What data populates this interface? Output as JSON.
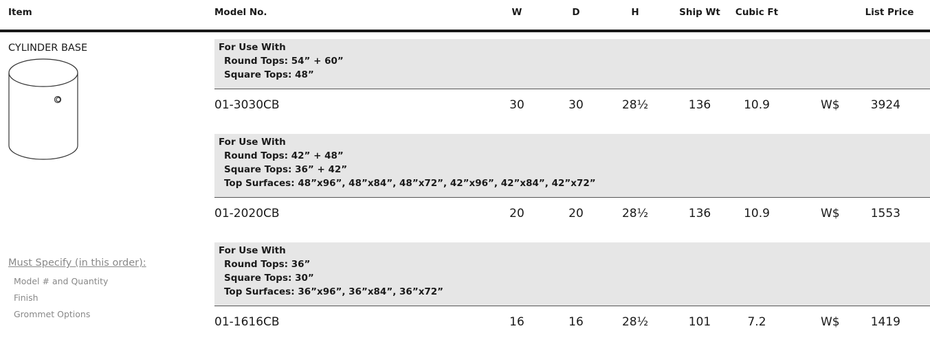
{
  "header": {
    "item": "Item",
    "model": "Model No.",
    "w": "W",
    "d": "D",
    "h": "H",
    "ship_wt": "Ship Wt",
    "cubic_ft": "Cubic Ft",
    "list_price": "List Price"
  },
  "item": {
    "name": "CYLINDER BASE",
    "must_specify": {
      "title": "Must Specify (in this order):",
      "items": [
        "Model # and Quantity",
        "Finish",
        "Grommet Options"
      ]
    }
  },
  "groups": [
    {
      "use_with": {
        "title": "For Use With",
        "lines": [
          "Round Tops: 54” + 60”",
          "Square Tops: 48”"
        ]
      },
      "row": {
        "model": "01-3030CB",
        "w": 30,
        "d": 30,
        "h": "28½",
        "ship_wt": 136,
        "cubic_ft": 10.9,
        "currency": "W$",
        "price": 3924
      }
    },
    {
      "use_with": {
        "title": "For Use With",
        "lines": [
          "Round Tops: 42” + 48”",
          "Square Tops: 36” + 42”",
          "Top Surfaces: 48”x96”, 48”x84”, 48”x72”, 42”x96”, 42”x84”, 42”x72”"
        ]
      },
      "row": {
        "model": "01-2020CB",
        "w": 20,
        "d": 20,
        "h": "28½",
        "ship_wt": 136,
        "cubic_ft": 10.9,
        "currency": "W$",
        "price": 1553
      }
    },
    {
      "use_with": {
        "title": "For Use With",
        "lines": [
          "Round Tops: 36”",
          "Square Tops: 30”",
          "Top Surfaces: 36”x96”, 36”x84”, 36”x72”"
        ]
      },
      "row": {
        "model": "01-1616CB",
        "w": 16,
        "d": 16,
        "h": "28½",
        "ship_wt": 101,
        "cubic_ft": 7.2,
        "currency": "W$",
        "price": 1419
      }
    }
  ]
}
